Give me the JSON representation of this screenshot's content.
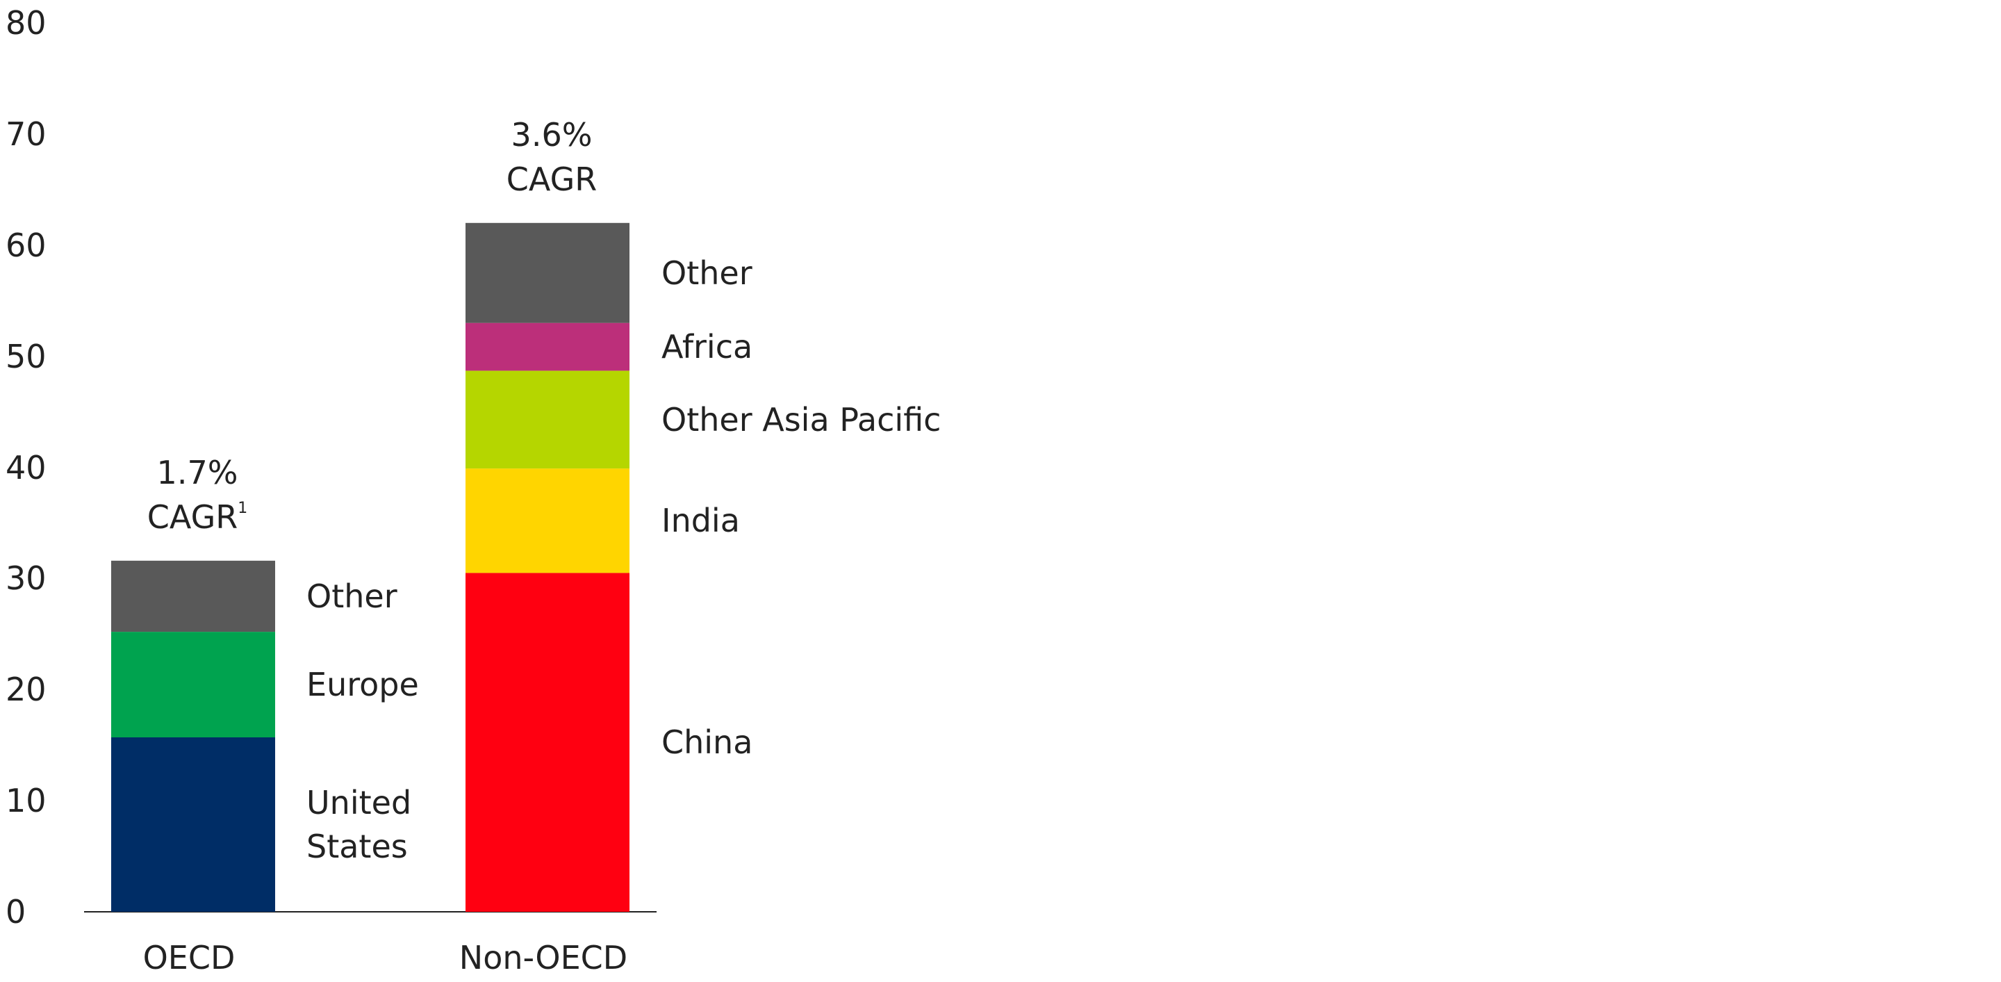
{
  "chart_data": {
    "type": "stacked_bar",
    "ylim": [
      0,
      80
    ],
    "yticks": [
      0,
      10,
      20,
      30,
      40,
      50,
      60,
      70,
      80
    ],
    "bars": [
      {
        "category": "OECD",
        "cagr": "1.7%",
        "cagr_label": "CAGR",
        "footnote": "1",
        "segments": [
          {
            "name": "United States",
            "value": 15.7,
            "color": "#002d66"
          },
          {
            "name": "Europe",
            "value": 9.5,
            "color": "#00a34f"
          },
          {
            "name": "Other",
            "value": 6.4,
            "color": "#595959"
          }
        ]
      },
      {
        "category": "Non-OECD",
        "cagr": "3.6%",
        "cagr_label": "CAGR",
        "segments": [
          {
            "name": "China",
            "value": 30.5,
            "color": "#ff0011"
          },
          {
            "name": "India",
            "value": 9.4,
            "color": "#ffd500"
          },
          {
            "name": "Other Asia Pacific",
            "value": 8.8,
            "color": "#b5d600"
          },
          {
            "name": "Africa",
            "value": 4.3,
            "color": "#bc2f7a"
          },
          {
            "name": "Other",
            "value": 9.0,
            "color": "#595959"
          }
        ]
      }
    ]
  }
}
